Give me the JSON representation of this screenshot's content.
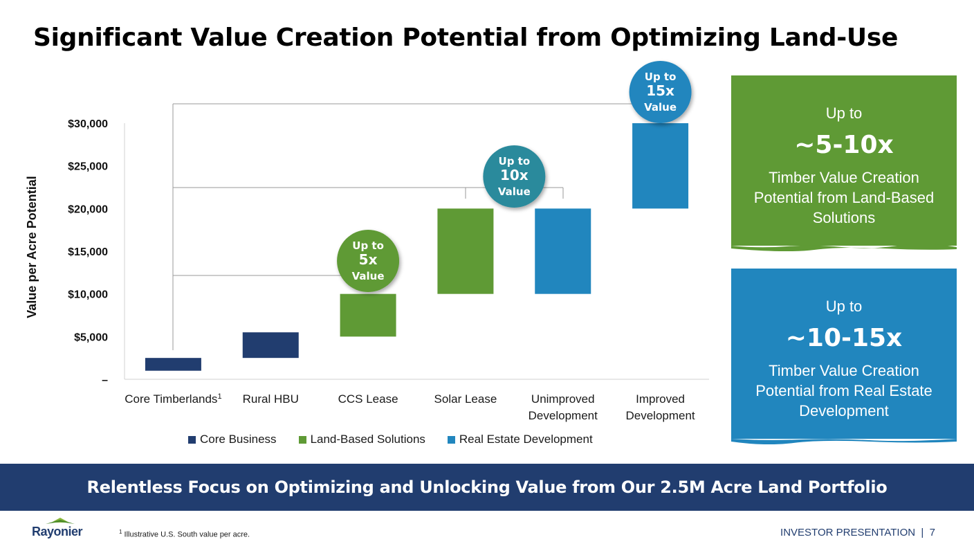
{
  "title": "Significant Value Creation Potential from Optimizing Land-Use",
  "chart_data": {
    "type": "bar",
    "subtype": "floating-range",
    "ylabel": "Value per Acre Potential",
    "ylim": [
      0,
      30000
    ],
    "y_ticks": [
      {
        "value": 0,
        "label": "–"
      },
      {
        "value": 5000,
        "label": "$5,000"
      },
      {
        "value": 10000,
        "label": "$10,000"
      },
      {
        "value": 15000,
        "label": "$15,000"
      },
      {
        "value": 20000,
        "label": "$20,000"
      },
      {
        "value": 25000,
        "label": "$25,000"
      },
      {
        "value": 30000,
        "label": "$30,000"
      }
    ],
    "categories": [
      {
        "lines": [
          "Core Timberlands"
        ],
        "sup": "1"
      },
      {
        "lines": [
          "Rural HBU"
        ],
        "sup": ""
      },
      {
        "lines": [
          "CCS Lease"
        ],
        "sup": ""
      },
      {
        "lines": [
          "Solar Lease"
        ],
        "sup": ""
      },
      {
        "lines": [
          "Unimproved",
          "Development"
        ],
        "sup": ""
      },
      {
        "lines": [
          "Improved",
          "Development"
        ],
        "sup": ""
      }
    ],
    "bars": [
      {
        "low": 1000,
        "high": 2500,
        "series": 0
      },
      {
        "low": 2500,
        "high": 5500,
        "series": 0
      },
      {
        "low": 5000,
        "high": 10000,
        "series": 1
      },
      {
        "low": 10000,
        "high": 20000,
        "series": 1
      },
      {
        "low": 10000,
        "high": 20000,
        "series": 2
      },
      {
        "low": 20000,
        "high": 30000,
        "series": 2
      }
    ],
    "series": [
      {
        "name": "Core Business",
        "color": "#213d6f"
      },
      {
        "name": "Land-Based Solutions",
        "color": "#5f9a35"
      },
      {
        "name": "Real Estate Development",
        "color": "#2186be"
      }
    ],
    "badges": [
      {
        "lines": [
          "Up to",
          "5x",
          "Value"
        ],
        "color": "#5f9a35",
        "category": 2
      },
      {
        "lines": [
          "Up to",
          "10x",
          "Value"
        ],
        "color": "#2c8a9c",
        "category": 3.5
      },
      {
        "lines": [
          "Up to",
          "15x",
          "Value"
        ],
        "color": "#2186be",
        "category": 5
      }
    ],
    "grid": false,
    "legend": "bottom"
  },
  "callouts": [
    {
      "upto": "Up to",
      "value": "~5-10x",
      "desc": "Timber Value Creation Potential from Land-Based Solutions",
      "color": "#5f9a35"
    },
    {
      "upto": "Up to",
      "value": "~10-15x",
      "desc": "Timber Value Creation Potential from Real Estate Development",
      "color": "#2186be"
    }
  ],
  "banner": "Relentless Focus on Optimizing and Unlocking Value from Our 2.5M Acre Land Portfolio",
  "footnote": {
    "mark": "1",
    "text": "Illustrative U.S. South value per acre."
  },
  "logo": "Rayonier",
  "footer": "INVESTOR PRESENTATION  |  7"
}
